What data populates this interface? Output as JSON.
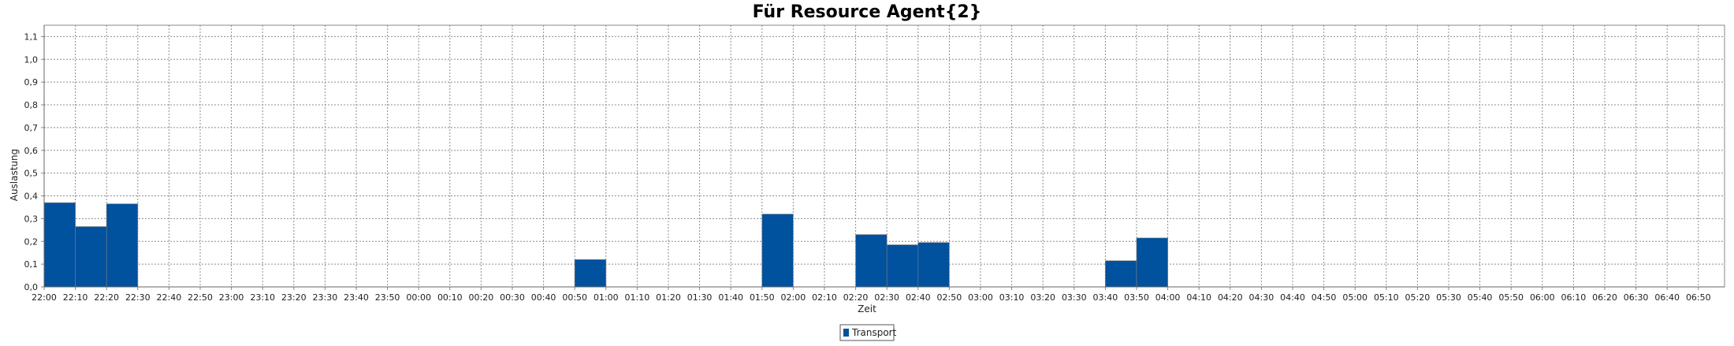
{
  "chart_data": {
    "type": "bar",
    "title": "Für Resource Agent{2}",
    "xlabel": "Zeit",
    "ylabel": "Auslastung",
    "ylim": [
      0,
      1.15
    ],
    "y_ticks": [
      "0,0",
      "0,1",
      "0,2",
      "0,3",
      "0,4",
      "0,5",
      "0,6",
      "0,7",
      "0,8",
      "0,9",
      "1,0",
      "1,1"
    ],
    "categories": [
      "22:00",
      "22:10",
      "22:20",
      "22:30",
      "22:40",
      "22:50",
      "23:00",
      "23:10",
      "23:20",
      "23:30",
      "23:40",
      "23:50",
      "00:00",
      "00:10",
      "00:20",
      "00:30",
      "00:40",
      "00:50",
      "01:00",
      "01:10",
      "01:20",
      "01:30",
      "01:40",
      "01:50",
      "02:00",
      "02:10",
      "02:20",
      "02:30",
      "02:40",
      "02:50",
      "03:00",
      "03:10",
      "03:20",
      "03:30",
      "03:40",
      "03:50",
      "04:00",
      "04:10",
      "04:20",
      "04:30",
      "04:40",
      "04:50",
      "05:00",
      "05:10",
      "05:20",
      "05:30",
      "05:40",
      "05:50",
      "06:00",
      "06:10",
      "06:20",
      "06:30",
      "06:40",
      "06:50"
    ],
    "series": [
      {
        "name": "Transport",
        "color": "#00519e",
        "values": [
          0.37,
          0.265,
          0.365,
          0,
          0,
          0,
          0,
          0,
          0,
          0,
          0,
          0,
          0,
          0,
          0,
          0,
          0,
          0.12,
          0,
          0,
          0,
          0,
          0,
          0.32,
          0,
          0,
          0.23,
          0.185,
          0.195,
          0,
          0,
          0,
          0,
          0,
          0.115,
          0.215,
          0,
          0,
          0,
          0,
          0,
          0,
          0,
          0,
          0,
          0,
          0,
          0,
          0,
          0,
          0,
          0,
          0,
          0
        ]
      }
    ],
    "grid": true,
    "legend_position": "bottom-center"
  }
}
